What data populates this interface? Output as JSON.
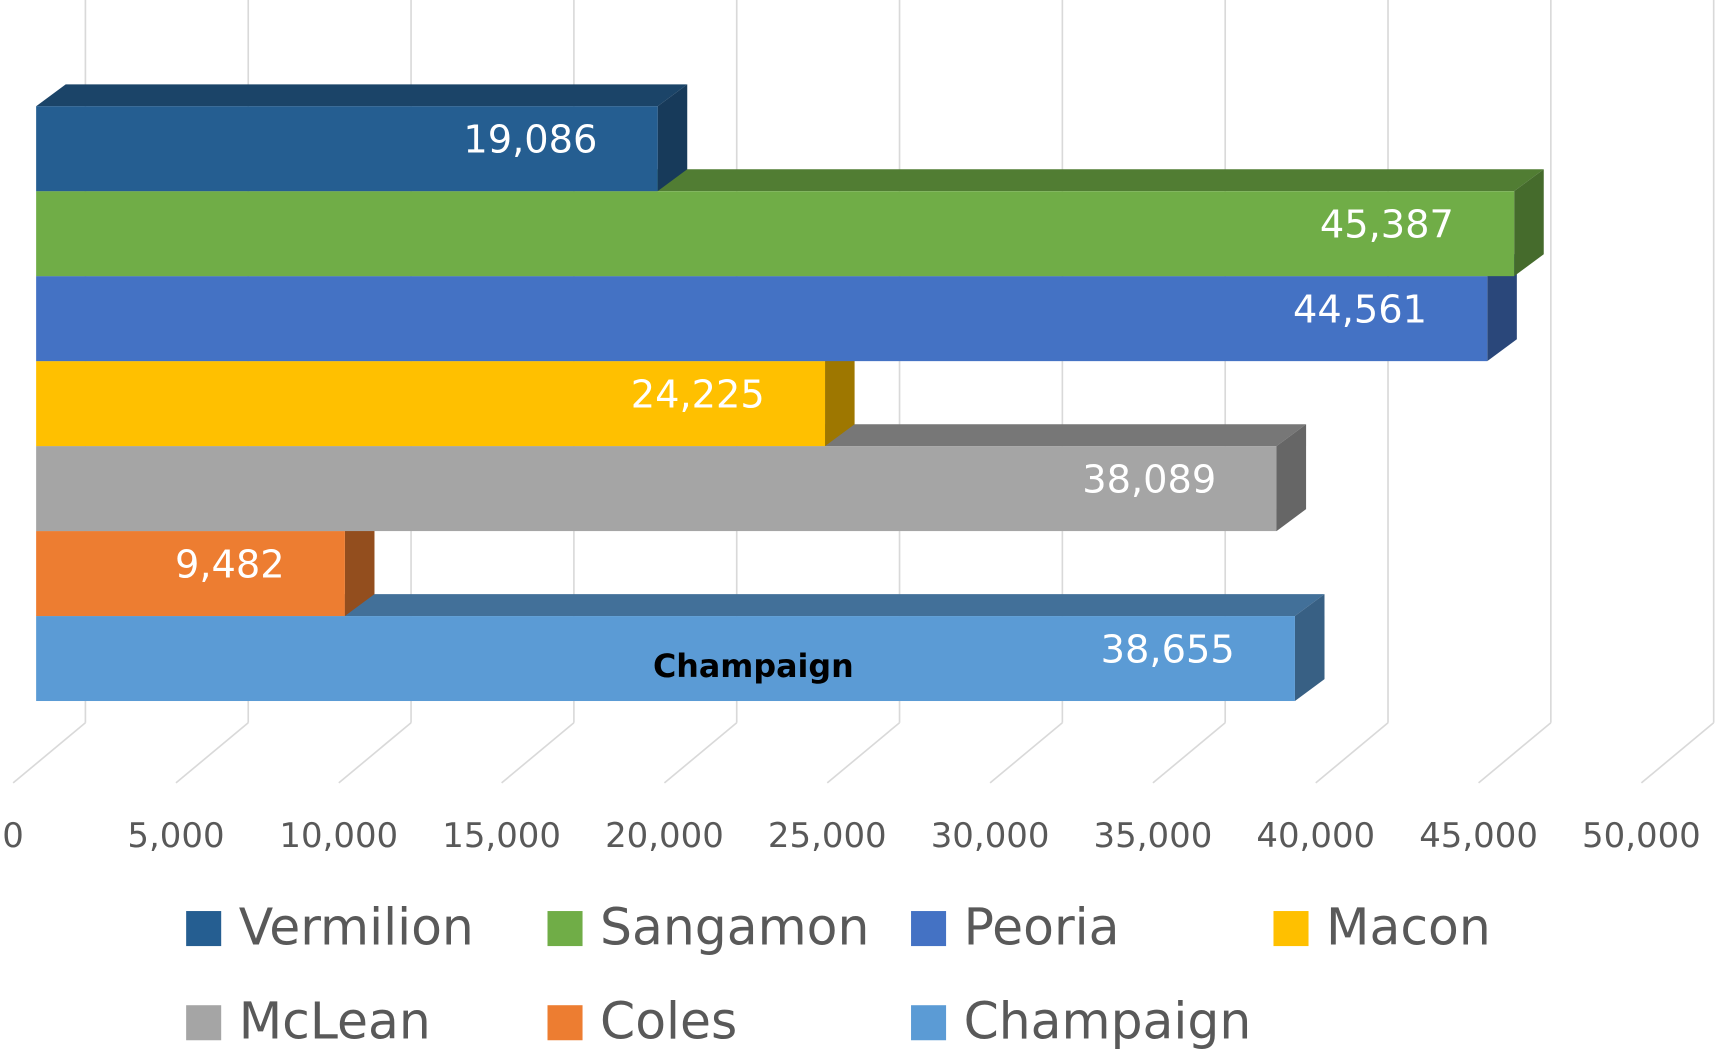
{
  "chart_data": {
    "type": "bar3d",
    "orientation": "horizontal",
    "categories": [
      "Champaign"
    ],
    "series": [
      {
        "name": "Vermilion",
        "color": "#255e91",
        "values": [
          19086
        ],
        "value_labels": [
          "19,086"
        ]
      },
      {
        "name": "Sangamon",
        "color": "#70ad47",
        "values": [
          45387
        ],
        "value_labels": [
          "45,387"
        ]
      },
      {
        "name": "Peoria",
        "color": "#4472c4",
        "values": [
          44561
        ],
        "value_labels": [
          "44,561"
        ]
      },
      {
        "name": "Macon",
        "color": "#ffc000",
        "values": [
          24225
        ],
        "value_labels": [
          "24,225"
        ]
      },
      {
        "name": "McLean",
        "color": "#a5a5a5",
        "values": [
          38089
        ],
        "value_labels": [
          "38,089"
        ]
      },
      {
        "name": "Coles",
        "color": "#ed7d31",
        "values": [
          9482
        ],
        "value_labels": [
          "9,482"
        ]
      },
      {
        "name": "Champaign",
        "color": "#5b9bd5",
        "values": [
          38655
        ],
        "value_labels": [
          "38,655"
        ]
      }
    ],
    "xlim": [
      0,
      50000
    ],
    "xticks": [
      0,
      {
        "value": 5000,
        "label": "5,000"
      },
      {
        "value": 10000,
        "label": "10,000"
      },
      {
        "value": 15000,
        "label": "15,000"
      },
      {
        "value": 20000,
        "label": "20,000"
      },
      {
        "value": 25000,
        "label": "25,000"
      },
      {
        "value": 30000,
        "label": "30,000"
      },
      {
        "value": 35000,
        "label": "35,000"
      },
      {
        "value": 40000,
        "label": "40,000"
      },
      {
        "value": 45000,
        "label": "45,000"
      },
      {
        "value": 50000,
        "label": "50,000"
      }
    ],
    "grid": true,
    "legend": "bottom"
  }
}
